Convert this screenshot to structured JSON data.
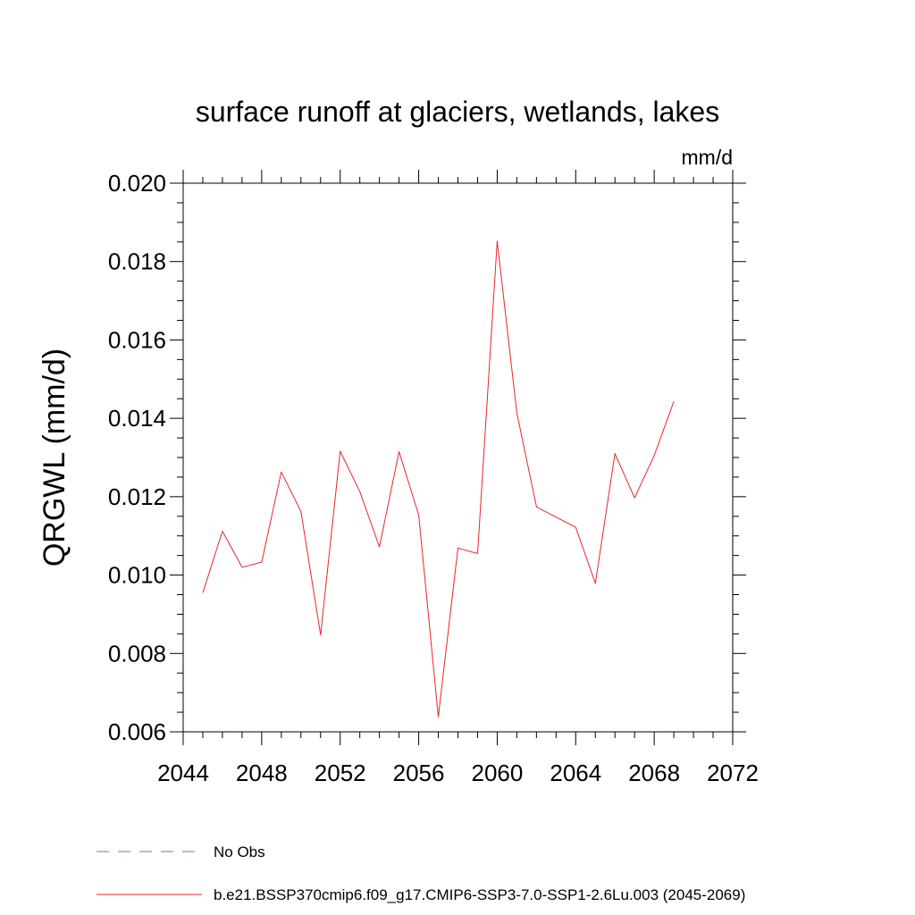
{
  "chart_data": {
    "type": "line",
    "title": "surface runoff at glaciers, wetlands, lakes",
    "units": "mm/d",
    "xlabel": "",
    "ylabel": "QRGWL  (mm/d)",
    "xlim": [
      2044,
      2072
    ],
    "ylim": [
      0.006,
      0.02
    ],
    "x_ticks": [
      "2044",
      "2048",
      "2052",
      "2056",
      "2060",
      "2064",
      "2068",
      "2072"
    ],
    "y_ticks": [
      "0.006",
      "0.008",
      "0.010",
      "0.012",
      "0.014",
      "0.016",
      "0.018",
      "0.020"
    ],
    "grid": false,
    "legend_position": "bottom",
    "series": [
      {
        "name": "No Obs",
        "color": "#7a6fb0",
        "style": "dashed",
        "x": [],
        "values": []
      },
      {
        "name": "b.e21.BSSP370cmip6.f09_g17.CMIP6-SSP3-7.0-SSP1-2.6Lu.003 (2045-2069)",
        "color": "#e8242c",
        "style": "solid",
        "x": [
          2045,
          2046,
          2047,
          2048,
          2049,
          2050,
          2051,
          2052,
          2053,
          2054,
          2055,
          2056,
          2057,
          2058,
          2059,
          2060,
          2061,
          2062,
          2063,
          2064,
          2065,
          2066,
          2067,
          2068,
          2069
        ],
        "values": [
          0.00955,
          0.01112,
          0.0102,
          0.01033,
          0.01263,
          0.01162,
          0.00847,
          0.01316,
          0.01213,
          0.01072,
          0.01315,
          0.01153,
          0.00638,
          0.01069,
          0.01055,
          0.01852,
          0.01414,
          0.01174,
          0.01148,
          0.01122,
          0.00979,
          0.0131,
          0.01197,
          0.01305,
          0.01443
        ]
      }
    ]
  }
}
